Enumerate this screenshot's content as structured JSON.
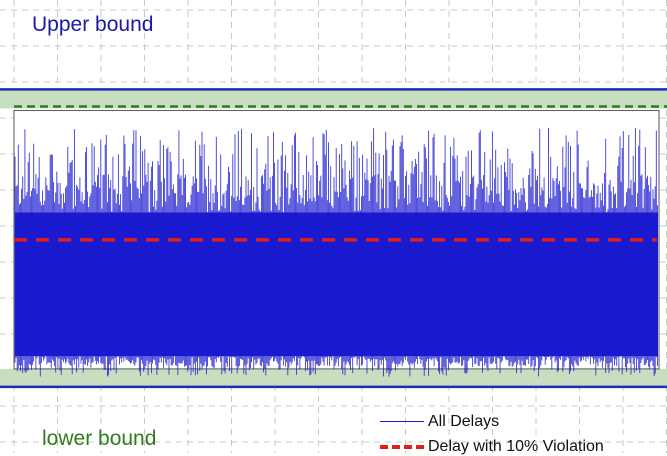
{
  "chart_data": {
    "type": "line",
    "title": "",
    "xlabel": "",
    "ylabel": "",
    "grid": true,
    "legend_placement": "bottom-right",
    "ylim": [
      0,
      1
    ],
    "annotations": {
      "upper": "Upper bound",
      "lower": "lower bound"
    },
    "reference_lines": {
      "upper_bound": 0.92,
      "upper_threshold": 0.87,
      "lower_bound": 0.05,
      "violation_delay": 0.48
    },
    "series": [
      {
        "name": "All Delays",
        "color": "#1a1ad0",
        "style": "solid",
        "band": {
          "base_low": 0.14,
          "base_high": 0.56,
          "spike_max": 0.81,
          "spike_min": 0.08
        }
      },
      {
        "name": "Delay with 10% Violation",
        "color": "#e0201a",
        "style": "dashed",
        "value": 0.48
      }
    ],
    "colors": {
      "bound_line": "#1f2fb0",
      "bound_band": "#c7dfc0",
      "threshold": "#2e7d1e",
      "grid": "#c8c8c8"
    }
  }
}
